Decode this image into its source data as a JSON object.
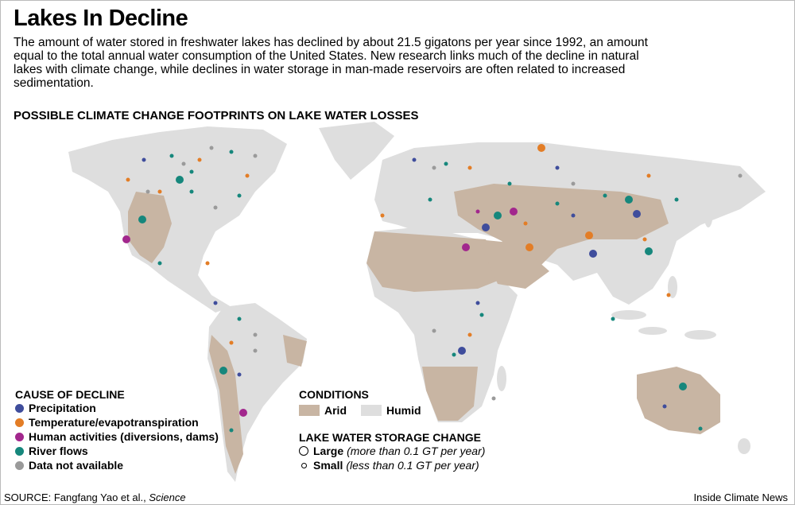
{
  "header": {
    "title": "Lakes In Decline",
    "description": "The amount of water stored in freshwater lakes has declined by about 21.5 gigatons per year since 1992, an amount equal to the total annual water consumption of the United States. New research links much of the decline in natural lakes with climate change, while declines in water storage in man-made reservoirs are often related to increased sedimentation.",
    "subtitle": "POSSIBLE CLIMATE CHANGE FOOTPRINTS ON LAKE WATER LOSSES"
  },
  "legend_cause": {
    "title": "CAUSE OF DECLINE",
    "items": [
      {
        "label": "Precipitation",
        "color": "#3f4d9c"
      },
      {
        "label": "Temperature/evapotranspiration",
        "color": "#e37d26"
      },
      {
        "label": "Human activities (diversions, dams)",
        "color": "#a2278d"
      },
      {
        "label": "River flows",
        "color": "#16877c"
      },
      {
        "label": "Data not available",
        "color": "#9a9a9a"
      }
    ]
  },
  "legend_conditions": {
    "title": "CONDITIONS",
    "items": [
      {
        "label": "Arid",
        "color": "#c8b5a3"
      },
      {
        "label": "Humid",
        "color": "#dedede"
      }
    ]
  },
  "legend_storage": {
    "title": "LAKE WATER STORAGE CHANGE",
    "items": [
      {
        "label": "Large",
        "note": "(more than 0.1 GT per year)"
      },
      {
        "label": "Small",
        "note": "(less than 0.1 GT per year)"
      }
    ]
  },
  "footer": {
    "source": "SOURCE: Fangfang Yao et al., ",
    "source_journal": "Science",
    "credit": "Inside Climate News"
  }
}
